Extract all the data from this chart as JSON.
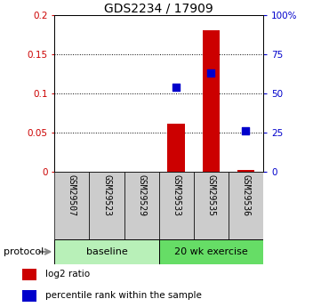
{
  "title": "GDS2234 / 17909",
  "samples": [
    "GSM29507",
    "GSM29523",
    "GSM29529",
    "GSM29533",
    "GSM29535",
    "GSM29536"
  ],
  "log2_ratio": [
    0.0,
    0.0,
    0.0,
    0.062,
    0.181,
    0.002
  ],
  "percentile_rank": [
    null,
    null,
    null,
    0.54,
    0.63,
    0.26
  ],
  "ylim_left": [
    0,
    0.2
  ],
  "ylim_right": [
    0,
    100
  ],
  "yticks_left": [
    0,
    0.05,
    0.1,
    0.15,
    0.2
  ],
  "yticks_right": [
    0,
    25,
    50,
    75,
    100
  ],
  "ytick_labels_left": [
    "0",
    "0.05",
    "0.1",
    "0.15",
    "0.2"
  ],
  "ytick_labels_right": [
    "0",
    "25",
    "50",
    "75",
    "100%"
  ],
  "protocol_groups": [
    {
      "label": "baseline",
      "samples": [
        0,
        1,
        2
      ],
      "color": "#b8f0b8"
    },
    {
      "label": "20 wk exercise",
      "samples": [
        3,
        4,
        5
      ],
      "color": "#66dd66"
    }
  ],
  "bar_color": "#cc0000",
  "dot_color": "#0000cc",
  "bar_width": 0.5,
  "dot_size": 40,
  "left_axis_color": "#cc0000",
  "right_axis_color": "#0000cc",
  "legend_items": [
    "log2 ratio",
    "percentile rank within the sample"
  ],
  "protocol_label": "protocol"
}
